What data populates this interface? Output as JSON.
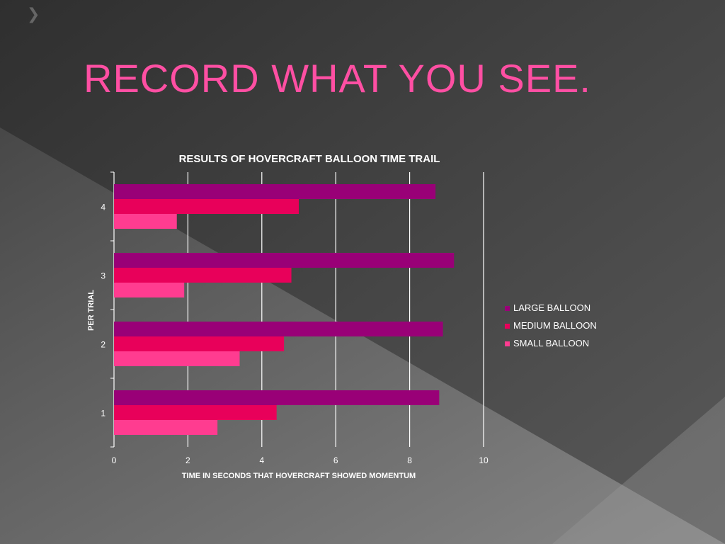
{
  "slide": {
    "title": "RECORD WHAT YOU SEE."
  },
  "colors": {
    "large": "#990077",
    "medium": "#e8005a",
    "small": "#ff3c90",
    "title": "#ff4fa3"
  },
  "chart_data": {
    "type": "bar",
    "orientation": "horizontal",
    "title": "RESULTS OF HOVERCRAFT BALLOON TIME TRAIL",
    "xlabel": "TIME IN SECONDS THAT HOVERCRAFT SHOWED MOMENTUM",
    "ylabel": "PER TRIAL",
    "categories": [
      "1",
      "2",
      "3",
      "4"
    ],
    "xlim": [
      0,
      10
    ],
    "xticks": [
      "0",
      "2",
      "4",
      "6",
      "8",
      "10"
    ],
    "grid": true,
    "legend_position": "right",
    "series": [
      {
        "name": "LARGE BALLOON",
        "color": "#990077",
        "values": [
          8.8,
          8.9,
          9.2,
          8.7
        ]
      },
      {
        "name": "MEDIUM BALLOON",
        "color": "#e8005a",
        "values": [
          4.4,
          4.6,
          4.8,
          5.0
        ]
      },
      {
        "name": "SMALL BALLOON",
        "color": "#ff3c90",
        "values": [
          2.8,
          3.4,
          1.9,
          1.7
        ]
      }
    ]
  }
}
